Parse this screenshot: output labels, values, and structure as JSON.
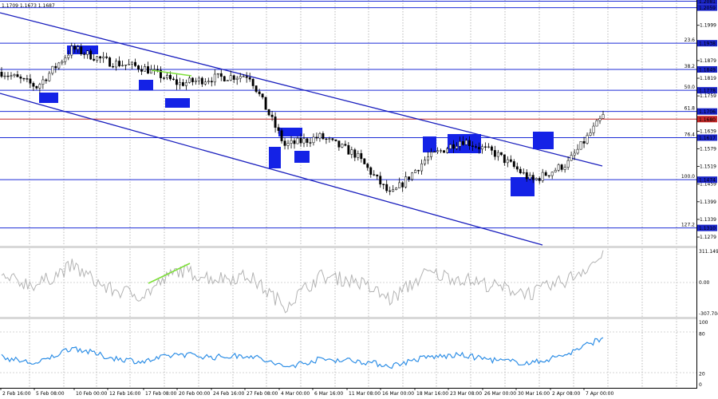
{
  "window": {
    "ohlc_text": "1.1709 1.1673 1.1687"
  },
  "colors": {
    "background": "#ffffff",
    "grid": "#8a8a8a",
    "price": "#000000",
    "level_line": "#1c2bd6",
    "current_price_line": "#c62828",
    "channel": "#1a1fbe",
    "swing_box": "#1422e6",
    "divergence": "#7ee03a",
    "cci": "#b3b3b3",
    "rsi": "#2f8fe6",
    "axis_label_bg": "#1a24c8"
  },
  "price_axis_labels": [
    "1.1999",
    "1.1879",
    "1.1819",
    "1.1759",
    "1.1639",
    "1.1579",
    "1.1519",
    "1.1459",
    "1.1399",
    "1.1339",
    "1.1279"
  ],
  "levels": [
    {
      "price": 1.2081,
      "label": "1.2081",
      "fib": ""
    },
    {
      "price": 1.2059,
      "label": "1.2059",
      "fib": ""
    },
    {
      "price": 1.1938,
      "label": "1.1938",
      "fib": "23.6"
    },
    {
      "price": 1.1849,
      "label": "1.1849",
      "fib": "38.2"
    },
    {
      "price": 1.1778,
      "label": "1.1778",
      "fib": "50.0"
    },
    {
      "price": 1.1706,
      "label": "1.1706",
      "fib": "61.8"
    },
    {
      "price": 1.1617,
      "label": "1.1617",
      "fib": "76.4"
    },
    {
      "price": 1.1474,
      "label": "1.1474",
      "fib": "100.0"
    },
    {
      "price": 1.131,
      "label": "1.1310",
      "fib": "127.2"
    }
  ],
  "current_price": {
    "price": 1.168,
    "label": "1.1680"
  },
  "price_scale": {
    "min": 1.1252,
    "max": 1.2085
  },
  "time_labels": [
    "2 Feb 16:00",
    "5 Feb 08:00",
    "10 Feb 00:00",
    "12 Feb 16:00",
    "17 Feb 08:00",
    "20 Feb 00:00",
    "24 Feb 16:00",
    "27 Feb 08:00",
    "4 Mar 00:00",
    "6 Mar 16:00",
    "11 Mar 08:00",
    "16 Mar 00:00",
    "18 Mar 16:00",
    "23 Mar 08:00",
    "26 Mar 00:00",
    "30 Mar 16:00",
    "2 Apr 08:00",
    "7 Apr 00:00"
  ],
  "cci": {
    "max_label": "311.1497",
    "zero_label": "0.00",
    "min_label": "-307.704",
    "range": [
      -307.704,
      311.1497
    ]
  },
  "rsi": {
    "labels": [
      "100",
      "80",
      "20",
      "0"
    ],
    "range": [
      0,
      100
    ]
  },
  "chart_data": [
    {
      "type": "line",
      "xlabel": "",
      "ylabel": "",
      "ylim": [
        1.1252,
        1.2085
      ],
      "x": [
        "2 Feb 16:00",
        "5 Feb 08:00",
        "10 Feb 00:00",
        "12 Feb 16:00",
        "17 Feb 08:00",
        "20 Feb 00:00",
        "24 Feb 16:00",
        "27 Feb 08:00",
        "4 Mar 00:00",
        "6 Mar 16:00",
        "11 Mar 08:00",
        "16 Mar 00:00",
        "18 Mar 16:00",
        "23 Mar 08:00",
        "26 Mar 00:00",
        "30 Mar 16:00",
        "2 Apr 08:00",
        "7 Apr 00:00"
      ],
      "series": [
        {
          "values": [
            1.184,
            1.179,
            1.192,
            1.1875,
            1.1855,
            1.18,
            1.182,
            1.183,
            1.159,
            1.162,
            1.156,
            1.142,
            1.1545,
            1.161,
            1.156,
            1.147,
            1.153,
            1.169
          ]
        }
      ],
      "grid": true
    },
    {
      "type": "line",
      "ylim": [
        -307.704,
        311.1497
      ],
      "x": [
        "2 Feb 16:00",
        "5 Feb 08:00",
        "10 Feb 00:00",
        "12 Feb 16:00",
        "17 Feb 08:00",
        "20 Feb 00:00",
        "24 Feb 16:00",
        "27 Feb 08:00",
        "4 Mar 00:00",
        "6 Mar 16:00",
        "11 Mar 08:00",
        "16 Mar 00:00",
        "18 Mar 16:00",
        "23 Mar 08:00",
        "26 Mar 00:00",
        "30 Mar 16:00",
        "2 Apr 08:00",
        "7 Apr 00:00"
      ],
      "series": [
        {
          "values": [
            40,
            -20,
            160,
            -60,
            -120,
            120,
            40,
            60,
            -220,
            60,
            20,
            -160,
            90,
            40,
            -40,
            -100,
            30,
            250
          ]
        }
      ]
    },
    {
      "type": "line",
      "ylim": [
        0,
        100
      ],
      "x": [
        "2 Feb 16:00",
        "5 Feb 08:00",
        "10 Feb 00:00",
        "12 Feb 16:00",
        "17 Feb 08:00",
        "20 Feb 00:00",
        "24 Feb 16:00",
        "27 Feb 08:00",
        "4 Mar 00:00",
        "6 Mar 16:00",
        "11 Mar 08:00",
        "16 Mar 00:00",
        "18 Mar 16:00",
        "23 Mar 08:00",
        "26 Mar 00:00",
        "30 Mar 16:00",
        "2 Apr 08:00",
        "7 Apr 00:00"
      ],
      "series": [
        {
          "values": [
            45,
            35,
            60,
            45,
            38,
            50,
            45,
            48,
            30,
            42,
            40,
            32,
            45,
            48,
            40,
            36,
            50,
            75
          ]
        }
      ]
    }
  ]
}
